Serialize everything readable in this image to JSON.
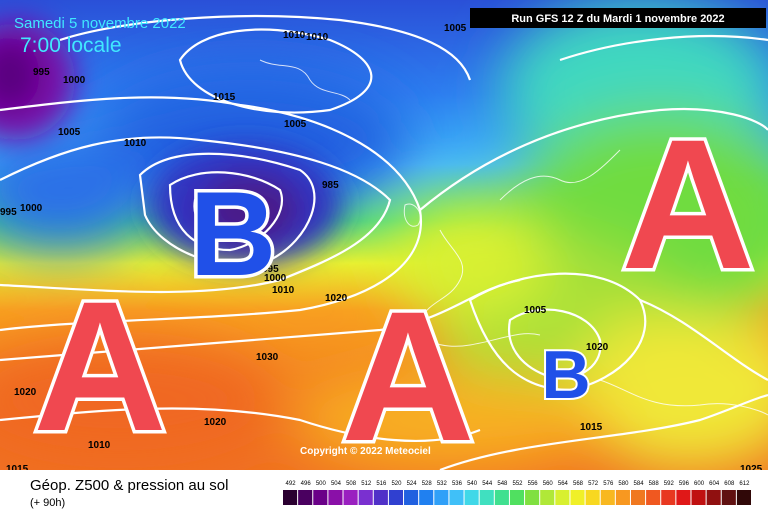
{
  "header": {
    "date": "Samedi 5 novembre 2022",
    "time": "7:00 locale",
    "run": "Run GFS 12 Z du Mardi 1 novembre 2022"
  },
  "map": {
    "systems": [
      "B",
      "A",
      "A",
      "A",
      "B"
    ],
    "isobar_labels": [
      1010,
      1010,
      1005,
      995,
      1000,
      1015,
      1005,
      1005,
      1010,
      985,
      995,
      1000,
      995,
      1000,
      1010,
      1020,
      1005,
      1020,
      1030,
      1020,
      1020,
      1010,
      1015,
      1015,
      1025
    ],
    "copyright": "Copyright © 2022 Meteociel"
  },
  "legend": {
    "title": "Géop. Z500 & pression au sol",
    "lead": "(+ 90h)",
    "scale": [
      {
        "label": "492",
        "color": "#2a0030"
      },
      {
        "label": "496",
        "color": "#4a0060"
      },
      {
        "label": "500",
        "color": "#6a0088"
      },
      {
        "label": "504",
        "color": "#8a10a8"
      },
      {
        "label": "508",
        "color": "#9a20c0"
      },
      {
        "label": "512",
        "color": "#7a30d0"
      },
      {
        "label": "516",
        "color": "#5030c8"
      },
      {
        "label": "520",
        "color": "#3040d0"
      },
      {
        "label": "524",
        "color": "#2060e0"
      },
      {
        "label": "528",
        "color": "#2080f0"
      },
      {
        "label": "532",
        "color": "#30a0f8"
      },
      {
        "label": "536",
        "color": "#40c0f8"
      },
      {
        "label": "540",
        "color": "#40d8e8"
      },
      {
        "label": "544",
        "color": "#40e0c0"
      },
      {
        "label": "548",
        "color": "#40e090"
      },
      {
        "label": "552",
        "color": "#50e060"
      },
      {
        "label": "556",
        "color": "#80e040"
      },
      {
        "label": "560",
        "color": "#b0e838"
      },
      {
        "label": "564",
        "color": "#d8f030"
      },
      {
        "label": "568",
        "color": "#f0f028"
      },
      {
        "label": "572",
        "color": "#f8d820"
      },
      {
        "label": "576",
        "color": "#f8b820"
      },
      {
        "label": "580",
        "color": "#f89820"
      },
      {
        "label": "584",
        "color": "#f07820"
      },
      {
        "label": "588",
        "color": "#f05820"
      },
      {
        "label": "592",
        "color": "#e83820"
      },
      {
        "label": "596",
        "color": "#e01818"
      },
      {
        "label": "600",
        "color": "#c01010"
      },
      {
        "label": "604",
        "color": "#901010"
      },
      {
        "label": "608",
        "color": "#601010"
      },
      {
        "label": "612",
        "color": "#300808"
      }
    ]
  }
}
